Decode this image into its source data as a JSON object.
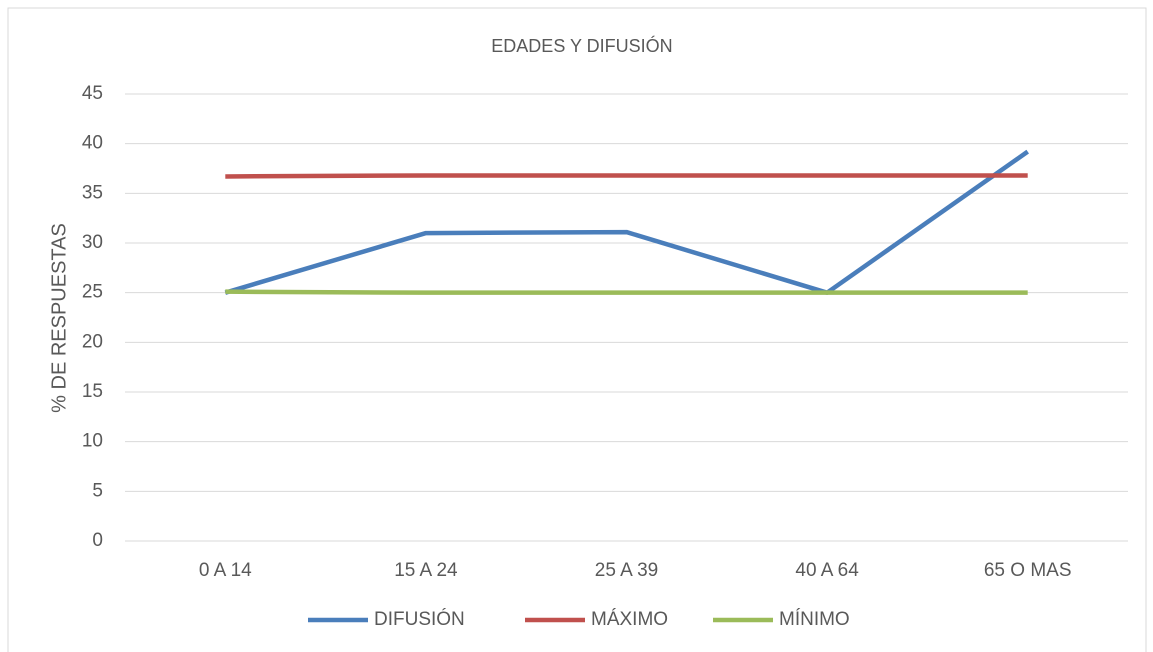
{
  "chart_data": {
    "type": "line",
    "title": "EDADES Y DIFUSIÓN",
    "y_label": "% DE RESPUESTAS",
    "categories": [
      "0 A 14",
      "15 A 24",
      "25 A 39",
      "40 A 64",
      "65 O MAS"
    ],
    "series": [
      {
        "name": "DIFUSIÓN",
        "color": "#4a7ebb",
        "values": [
          25,
          31,
          31.1,
          25,
          39.2
        ]
      },
      {
        "name": "MÁXIMO",
        "color": "#c0504d",
        "values": [
          36.7,
          36.8,
          36.8,
          36.8,
          36.8
        ]
      },
      {
        "name": "MÍNIMO",
        "color": "#9bbb59",
        "values": [
          25.1,
          25,
          25,
          25,
          25
        ]
      }
    ],
    "ylim": [
      0,
      45
    ],
    "yticks": [
      0,
      5,
      10,
      15,
      20,
      25,
      30,
      35,
      40,
      45
    ],
    "grid": true,
    "legend": "bottom"
  }
}
